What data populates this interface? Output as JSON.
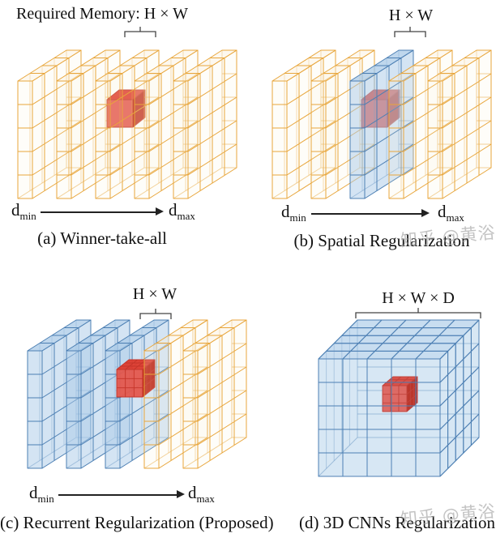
{
  "header": {
    "required_memory": "Required Memory: H × W"
  },
  "axis": {
    "min": {
      "base": "d",
      "sub": "min"
    },
    "max": {
      "base": "d",
      "sub": "max"
    }
  },
  "watermark": {
    "text": "知乎 @黄浴"
  },
  "colors": {
    "yellow_stroke": "#E8A63C",
    "yellow_fill": "#FAF0DC",
    "blue_stroke": "#4C7FB3",
    "blue_fill": "#AACAE7",
    "red_front": "#E4574D",
    "red_top": "#DE3A2C",
    "red_side": "#BC1B0B",
    "red_grid": "#C5352A",
    "red_edge": "#C43A2C"
  },
  "panels": {
    "a": {
      "caption": "(a) Winner-take-all",
      "slabs": [
        "yellow",
        "yellow",
        "yellow",
        "yellow",
        "yellow"
      ],
      "highlight": "red-cube"
    },
    "b": {
      "dim_label": "H × W",
      "caption": "(b) Spatial Regularization",
      "slabs": [
        "yellow",
        "yellow",
        "blue",
        "yellow",
        "yellow"
      ],
      "highlight": "red-cube"
    },
    "c": {
      "dim_label": "H × W",
      "caption": "(c) Recurrent Regularization (Proposed)",
      "slabs": [
        "blue",
        "blue",
        "blue",
        "yellow",
        "yellow"
      ],
      "highlight": "red-cube-gridded"
    },
    "d": {
      "dim_label": "H × W × D",
      "caption": "(d) 3D CNNs Regularization",
      "volume": "blue",
      "highlight": "red-cube-gridded"
    }
  }
}
